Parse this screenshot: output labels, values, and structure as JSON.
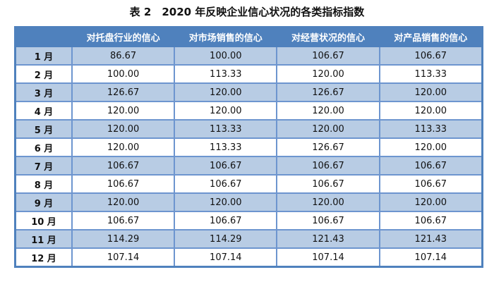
{
  "title": "表 2　2020 年反映企业信心状况的各类指标指数",
  "columns": [
    "",
    "对托盘行业的信心",
    "对市场销售的信心",
    "对经营状况的信心",
    "对产品销售的信心"
  ],
  "rows": [
    {
      "month": "1 月",
      "values": [
        "86.67",
        "100.00",
        "106.67",
        "106.67"
      ]
    },
    {
      "month": "2 月",
      "values": [
        "100.00",
        "113.33",
        "120.00",
        "113.33"
      ]
    },
    {
      "month": "3 月",
      "values": [
        "126.67",
        "120.00",
        "126.67",
        "120.00"
      ]
    },
    {
      "month": "4 月",
      "values": [
        "120.00",
        "120.00",
        "120.00",
        "120.00"
      ]
    },
    {
      "month": "5 月",
      "values": [
        "120.00",
        "113.33",
        "120.00",
        "113.33"
      ]
    },
    {
      "month": "6 月",
      "values": [
        "120.00",
        "113.33",
        "126.67",
        "120.00"
      ]
    },
    {
      "month": "7 月",
      "values": [
        "106.67",
        "106.67",
        "106.67",
        "106.67"
      ]
    },
    {
      "month": "8 月",
      "values": [
        "106.67",
        "106.67",
        "106.67",
        "106.67"
      ]
    },
    {
      "month": "9 月",
      "values": [
        "120.00",
        "120.00",
        "120.00",
        "120.00"
      ]
    },
    {
      "month": "10 月",
      "values": [
        "106.67",
        "106.67",
        "106.67",
        "106.67"
      ]
    },
    {
      "month": "11 月",
      "values": [
        "114.29",
        "114.29",
        "121.43",
        "121.43"
      ]
    },
    {
      "month": "12 月",
      "values": [
        "107.14",
        "107.14",
        "107.14",
        "107.14"
      ]
    }
  ],
  "colors": {
    "header": "#4f81bd",
    "band": "#b8cce4"
  }
}
